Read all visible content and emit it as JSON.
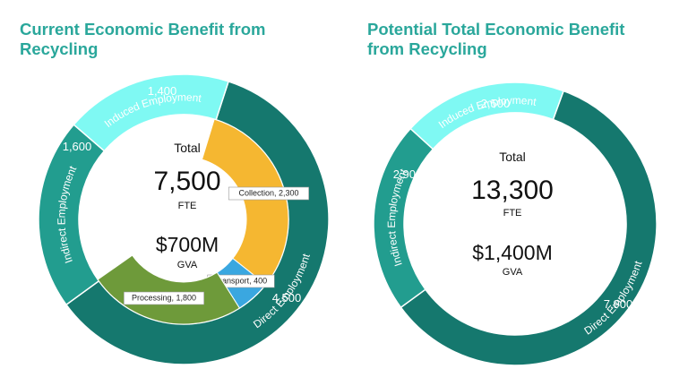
{
  "colors": {
    "title": "#2aa79b",
    "direct": "#15786e",
    "indirect": "#229d8f",
    "induced": "#7ff9f3",
    "collection": "#f5b731",
    "transport": "#3aa7e0",
    "processing": "#6e9a3a"
  },
  "chart_data": [
    {
      "type": "pie",
      "title": "Current Economic Benefit from\nRecycling",
      "outer_ring": [
        {
          "label": "Direct Employment",
          "value": 4500,
          "value_label": "4,500"
        },
        {
          "label": "Indirect Employment",
          "value": 1600,
          "value_label": "1,600"
        },
        {
          "label": "Induced Employment",
          "value": 1400,
          "value_label": "1,400"
        }
      ],
      "inner_ring": [
        {
          "label": "Collection",
          "value": 2300,
          "value_label": "Collection, 2,300"
        },
        {
          "label": "Transport",
          "value": 400,
          "value_label": "Transport, 400"
        },
        {
          "label": "Processing",
          "value": 1800,
          "value_label": "Processing, 1,800"
        }
      ],
      "center": {
        "total_label": "Total",
        "total_value": "7,500",
        "total_unit": "FTE",
        "gva_value": "$700M",
        "gva_unit": "GVA"
      }
    },
    {
      "type": "pie",
      "title": "Potential Total Economic Benefit\nfrom Recycling",
      "outer_ring": [
        {
          "label": "Direct Employment",
          "value": 7900,
          "value_label": "7,900"
        },
        {
          "label": "Indirect Employment",
          "value": 2900,
          "value_label": "2,900"
        },
        {
          "label": "Induced Employment",
          "value": 2500,
          "value_label": "2,500"
        }
      ],
      "center": {
        "total_label": "Total",
        "total_value": "13,300",
        "total_unit": "FTE",
        "gva_value": "$1,400M",
        "gva_unit": "GVA"
      }
    }
  ]
}
